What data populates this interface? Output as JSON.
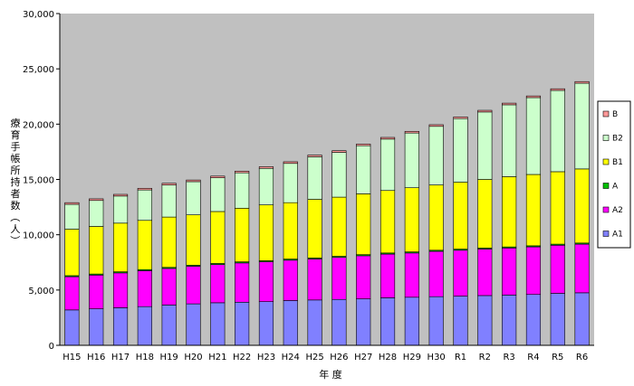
{
  "chart_data": {
    "type": "bar",
    "stacked": true,
    "title": "",
    "xlabel": "年 度",
    "ylabel": "療育手帳所持者数（人）",
    "ylim": [
      0,
      30000
    ],
    "yticks": [
      0,
      5000,
      10000,
      15000,
      20000,
      25000,
      30000
    ],
    "ytick_labels": [
      "0",
      "5,000",
      "10,000",
      "15,000",
      "20,000",
      "25,000",
      "30,000"
    ],
    "grid": false,
    "legend_position": "right",
    "categories": [
      "H15",
      "H16",
      "H17",
      "H18",
      "H19",
      "H20",
      "H21",
      "H22",
      "H23",
      "H24",
      "H25",
      "H26",
      "H27",
      "H28",
      "H29",
      "H30",
      "R1",
      "R2",
      "R3",
      "R4",
      "R5",
      "R6"
    ],
    "series": [
      {
        "name": "A1",
        "color": "#8080ff",
        "values": [
          3200,
          3300,
          3400,
          3500,
          3650,
          3750,
          3850,
          3900,
          3950,
          4050,
          4100,
          4150,
          4200,
          4300,
          4350,
          4400,
          4450,
          4500,
          4550,
          4600,
          4700,
          4750
        ]
      },
      {
        "name": "A2",
        "color": "#ff00ff",
        "values": [
          3000,
          3050,
          3150,
          3250,
          3300,
          3400,
          3450,
          3550,
          3600,
          3650,
          3700,
          3800,
          3900,
          3950,
          4000,
          4100,
          4150,
          4200,
          4250,
          4300,
          4350,
          4400
        ]
      },
      {
        "name": "A",
        "color": "#00c000",
        "values": [
          100,
          100,
          100,
          100,
          100,
          100,
          100,
          100,
          100,
          100,
          100,
          100,
          100,
          100,
          100,
          100,
          100,
          100,
          100,
          100,
          100,
          100
        ]
      },
      {
        "name": "B1",
        "color": "#ffff00",
        "values": [
          4200,
          4300,
          4400,
          4450,
          4550,
          4550,
          4700,
          4850,
          5050,
          5100,
          5300,
          5350,
          5500,
          5650,
          5800,
          5900,
          6050,
          6200,
          6350,
          6450,
          6550,
          6700
        ]
      },
      {
        "name": "B2",
        "color": "#ccffcc",
        "values": [
          2250,
          2350,
          2450,
          2750,
          2900,
          3000,
          3050,
          3200,
          3300,
          3550,
          3850,
          4050,
          4350,
          4650,
          4950,
          5300,
          5750,
          6100,
          6500,
          6950,
          7350,
          7750
        ]
      },
      {
        "name": "B",
        "color": "#ff9999",
        "values": [
          150,
          150,
          150,
          150,
          150,
          150,
          150,
          150,
          150,
          150,
          150,
          150,
          150,
          150,
          150,
          150,
          150,
          150,
          150,
          150,
          150,
          150
        ]
      }
    ],
    "legend_order": [
      "B",
      "B2",
      "B1",
      "A",
      "A2",
      "A1"
    ]
  }
}
